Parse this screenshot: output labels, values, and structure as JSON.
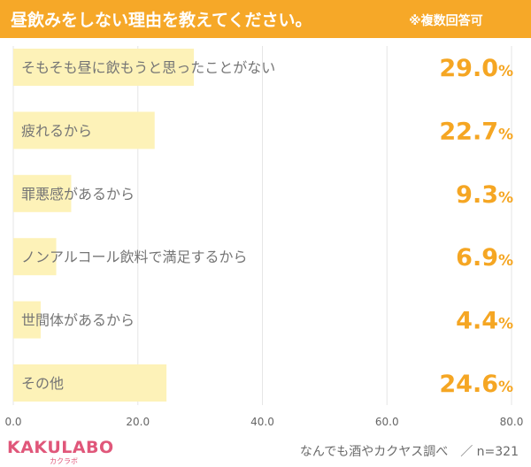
{
  "header": {
    "title": "昼飲みをしない理由を教えてください。",
    "note": "※複数回答可"
  },
  "chart_data": {
    "type": "bar",
    "orientation": "horizontal",
    "title": "昼飲みをしない理由を教えてください。",
    "categories": [
      "そもそも昼に飲もうと思ったことがない",
      "疲れるから",
      "罪悪感があるから",
      "ノンアルコール飲料で満足するから",
      "世間体があるから",
      "その他"
    ],
    "values": [
      29.0,
      22.7,
      9.3,
      6.9,
      4.4,
      24.6
    ],
    "value_labels": [
      "29.0",
      "22.7",
      "9.3",
      "6.9",
      "4.4",
      "24.6"
    ],
    "value_suffix": "%",
    "xlim": [
      0,
      80
    ],
    "x_ticks": [
      "0.0",
      "20.0",
      "40.0",
      "60.0",
      "80.0"
    ],
    "x_tick_values": [
      0,
      20,
      40,
      60,
      80
    ],
    "grid": true,
    "bar_color": "#fdf2b8",
    "label_color": "#f5a623"
  },
  "footer": {
    "logo": "KAKULABO",
    "logo_sub": "カクラボ",
    "source": "なんでも酒やカクヤス調べ　／ n=321"
  }
}
